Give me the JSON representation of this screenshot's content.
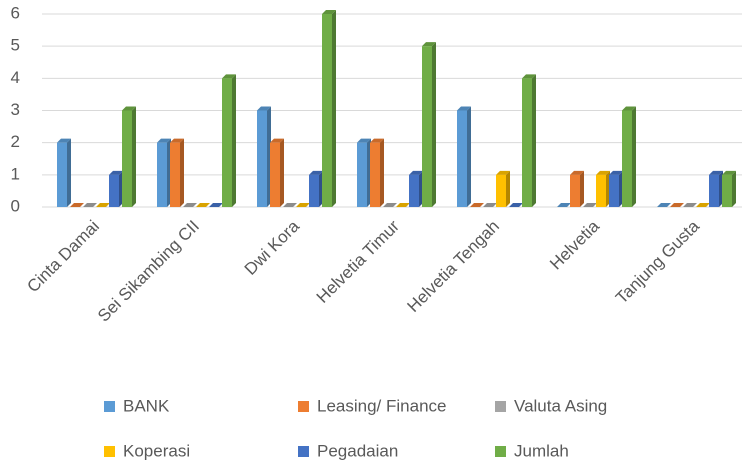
{
  "chart_data": {
    "type": "bar",
    "categories": [
      "Cinta Damai",
      "Sei Sikambing CII",
      "Dwi Kora",
      "Helvetia Timur",
      "Helvetia Tengah",
      "Helvetia",
      "Tanjung Gusta"
    ],
    "series": [
      {
        "name": "BANK",
        "color": "#5b9bd5",
        "values": [
          2,
          2,
          3,
          2,
          3,
          0,
          0
        ]
      },
      {
        "name": "Leasing/ Finance",
        "color": "#ed7d31",
        "values": [
          0,
          2,
          2,
          2,
          0,
          1,
          0
        ]
      },
      {
        "name": "Valuta Asing",
        "color": "#a5a5a5",
        "values": [
          0,
          0,
          0,
          0,
          0,
          0,
          0
        ]
      },
      {
        "name": "Koperasi",
        "color": "#ffc000",
        "values": [
          0,
          0,
          0,
          0,
          1,
          1,
          0
        ]
      },
      {
        "name": "Pegadaian",
        "color": "#4472c4",
        "values": [
          1,
          0,
          1,
          1,
          0,
          1,
          1
        ]
      },
      {
        "name": "Jumlah",
        "color": "#70ad47",
        "values": [
          3,
          4,
          6,
          5,
          4,
          3,
          1
        ]
      }
    ],
    "ylim": [
      0,
      6
    ],
    "yticks": [
      0,
      1,
      2,
      3,
      4,
      5,
      6
    ],
    "grid": true,
    "legend": "bottom"
  }
}
